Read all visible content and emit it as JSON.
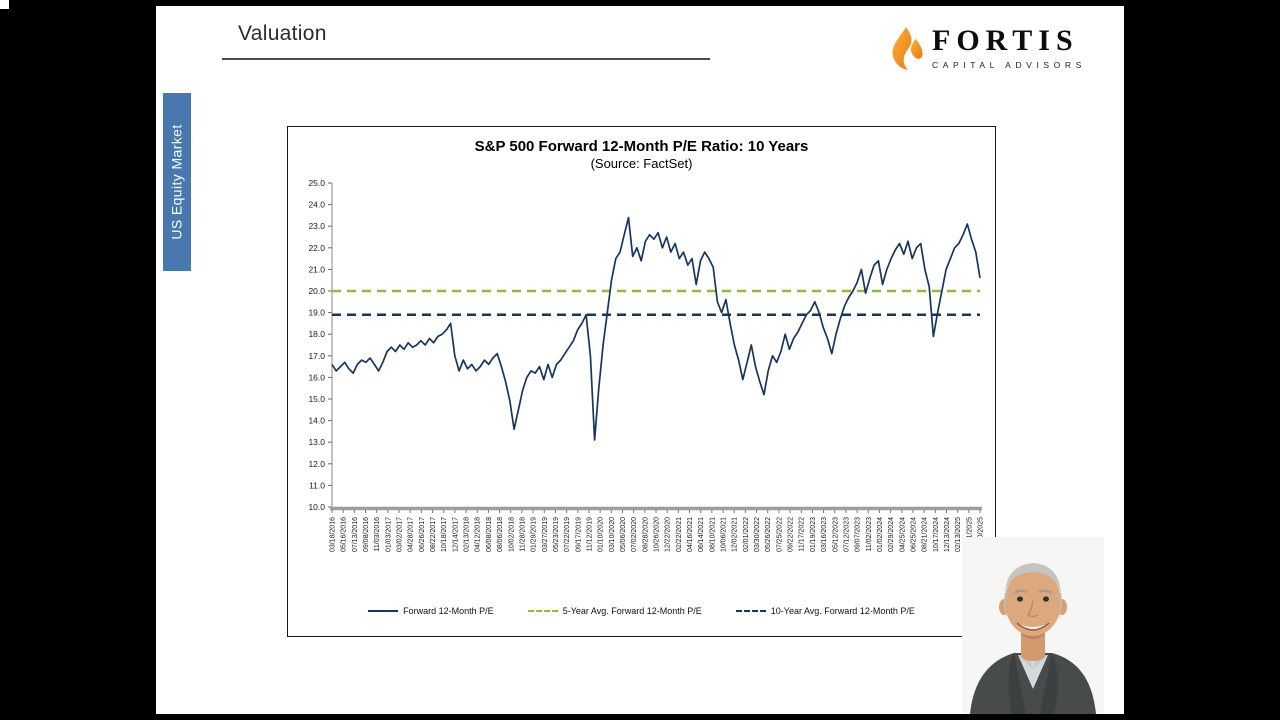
{
  "slide": {
    "heading": "Valuation",
    "sidebar_label": "US Equity Market",
    "logo": {
      "name": "FORTIS",
      "subtitle": "CAPITAL ADVISORS"
    }
  },
  "colors": {
    "banner_blue": "#4878ad",
    "navy": "#17365d",
    "green": "#97b83d",
    "flame_orange": "#ef8c1a"
  },
  "chart_data": {
    "type": "line",
    "title": "S&P 500 Forward 12-Month P/E Ratio: 10 Years",
    "subtitle": "(Source: FactSet)",
    "ylim": [
      10.0,
      25.0
    ],
    "y_ticks": [
      "10.0",
      "11.0",
      "12.0",
      "13.0",
      "14.0",
      "15.0",
      "16.0",
      "17.0",
      "18.0",
      "19.0",
      "20.0",
      "21.0",
      "22.0",
      "23.0",
      "24.0",
      "25.0"
    ],
    "grid": false,
    "legend_position": "bottom",
    "x_labels": [
      "03/18/2016",
      "05/16/2016",
      "07/13/2016",
      "09/08/2016",
      "11/03/2016",
      "01/03/2017",
      "03/02/2017",
      "04/28/2017",
      "06/26/2017",
      "08/22/2017",
      "10/18/2017",
      "12/14/2017",
      "02/13/2018",
      "04/12/2018",
      "06/08/2018",
      "08/06/2018",
      "10/02/2018",
      "11/28/2018",
      "01/29/2019",
      "03/27/2019",
      "05/23/2019",
      "07/22/2019",
      "09/17/2019",
      "11/12/2019",
      "01/10/2020",
      "03/10/2020",
      "05/06/2020",
      "07/02/2020",
      "08/28/2020",
      "10/26/2020",
      "12/22/2020",
      "02/22/2021",
      "04/16/2021",
      "06/14/2021",
      "08/10/2021",
      "10/06/2021",
      "12/02/2021",
      "02/01/2022",
      "03/30/2022",
      "05/26/2022",
      "07/25/2022",
      "09/22/2022",
      "11/17/2022",
      "01/19/2023",
      "03/16/2023",
      "05/12/2023",
      "07/12/2023",
      "09/07/2023",
      "11/02/2023",
      "01/02/2024",
      "02/29/2024",
      "04/25/2024",
      "06/25/2024",
      "08/21/2024",
      "10/17/2024",
      "12/13/2024",
      "02/13/2025",
      "04/11/2025",
      "06/10/2025"
    ],
    "series": [
      {
        "name": "Forward 12-Month P/E",
        "color": "#17365d",
        "style": "solid",
        "values": [
          16.6,
          16.3,
          16.5,
          16.7,
          16.4,
          16.2,
          16.6,
          16.8,
          16.7,
          16.9,
          16.6,
          16.3,
          16.7,
          17.2,
          17.4,
          17.2,
          17.5,
          17.3,
          17.6,
          17.4,
          17.5,
          17.7,
          17.5,
          17.8,
          17.6,
          17.9,
          18.0,
          18.2,
          18.5,
          17.0,
          16.3,
          16.8,
          16.4,
          16.6,
          16.3,
          16.5,
          16.8,
          16.6,
          16.9,
          17.1,
          16.5,
          15.8,
          14.9,
          13.6,
          14.5,
          15.4,
          16.0,
          16.3,
          16.2,
          16.5,
          15.9,
          16.6,
          16.0,
          16.6,
          16.8,
          17.1,
          17.4,
          17.7,
          18.2,
          18.5,
          18.9,
          17.0,
          13.1,
          15.5,
          17.5,
          19.0,
          20.5,
          21.5,
          21.8,
          22.6,
          23.4,
          21.6,
          22.0,
          21.4,
          22.3,
          22.6,
          22.4,
          22.7,
          22.0,
          22.5,
          21.8,
          22.2,
          21.5,
          21.8,
          21.2,
          21.5,
          20.3,
          21.4,
          21.8,
          21.5,
          21.1,
          19.5,
          19.0,
          19.6,
          18.5,
          17.5,
          16.8,
          15.9,
          16.7,
          17.5,
          16.5,
          15.8,
          15.2,
          16.3,
          17.0,
          16.7,
          17.2,
          18.0,
          17.3,
          17.8,
          18.1,
          18.5,
          18.9,
          19.1,
          19.5,
          19.0,
          18.3,
          17.8,
          17.1,
          18.0,
          18.7,
          19.3,
          19.7,
          20.0,
          20.4,
          21.0,
          19.9,
          20.6,
          21.2,
          21.4,
          20.3,
          21.0,
          21.5,
          21.9,
          22.2,
          21.7,
          22.3,
          21.5,
          22.0,
          22.2,
          21.0,
          20.2,
          17.9,
          19.0,
          20.0,
          21.0,
          21.5,
          22.0,
          22.2,
          22.6,
          23.1,
          22.4,
          21.8,
          20.6
        ]
      },
      {
        "name": "5-Year Avg. Forward 12-Month P/E",
        "color": "#97b83d",
        "style": "dashed",
        "constant": 20.0
      },
      {
        "name": "10-Year Avg. Forward 12-Month P/E",
        "color": "#17365d",
        "style": "dashed",
        "constant": 18.9
      }
    ]
  }
}
